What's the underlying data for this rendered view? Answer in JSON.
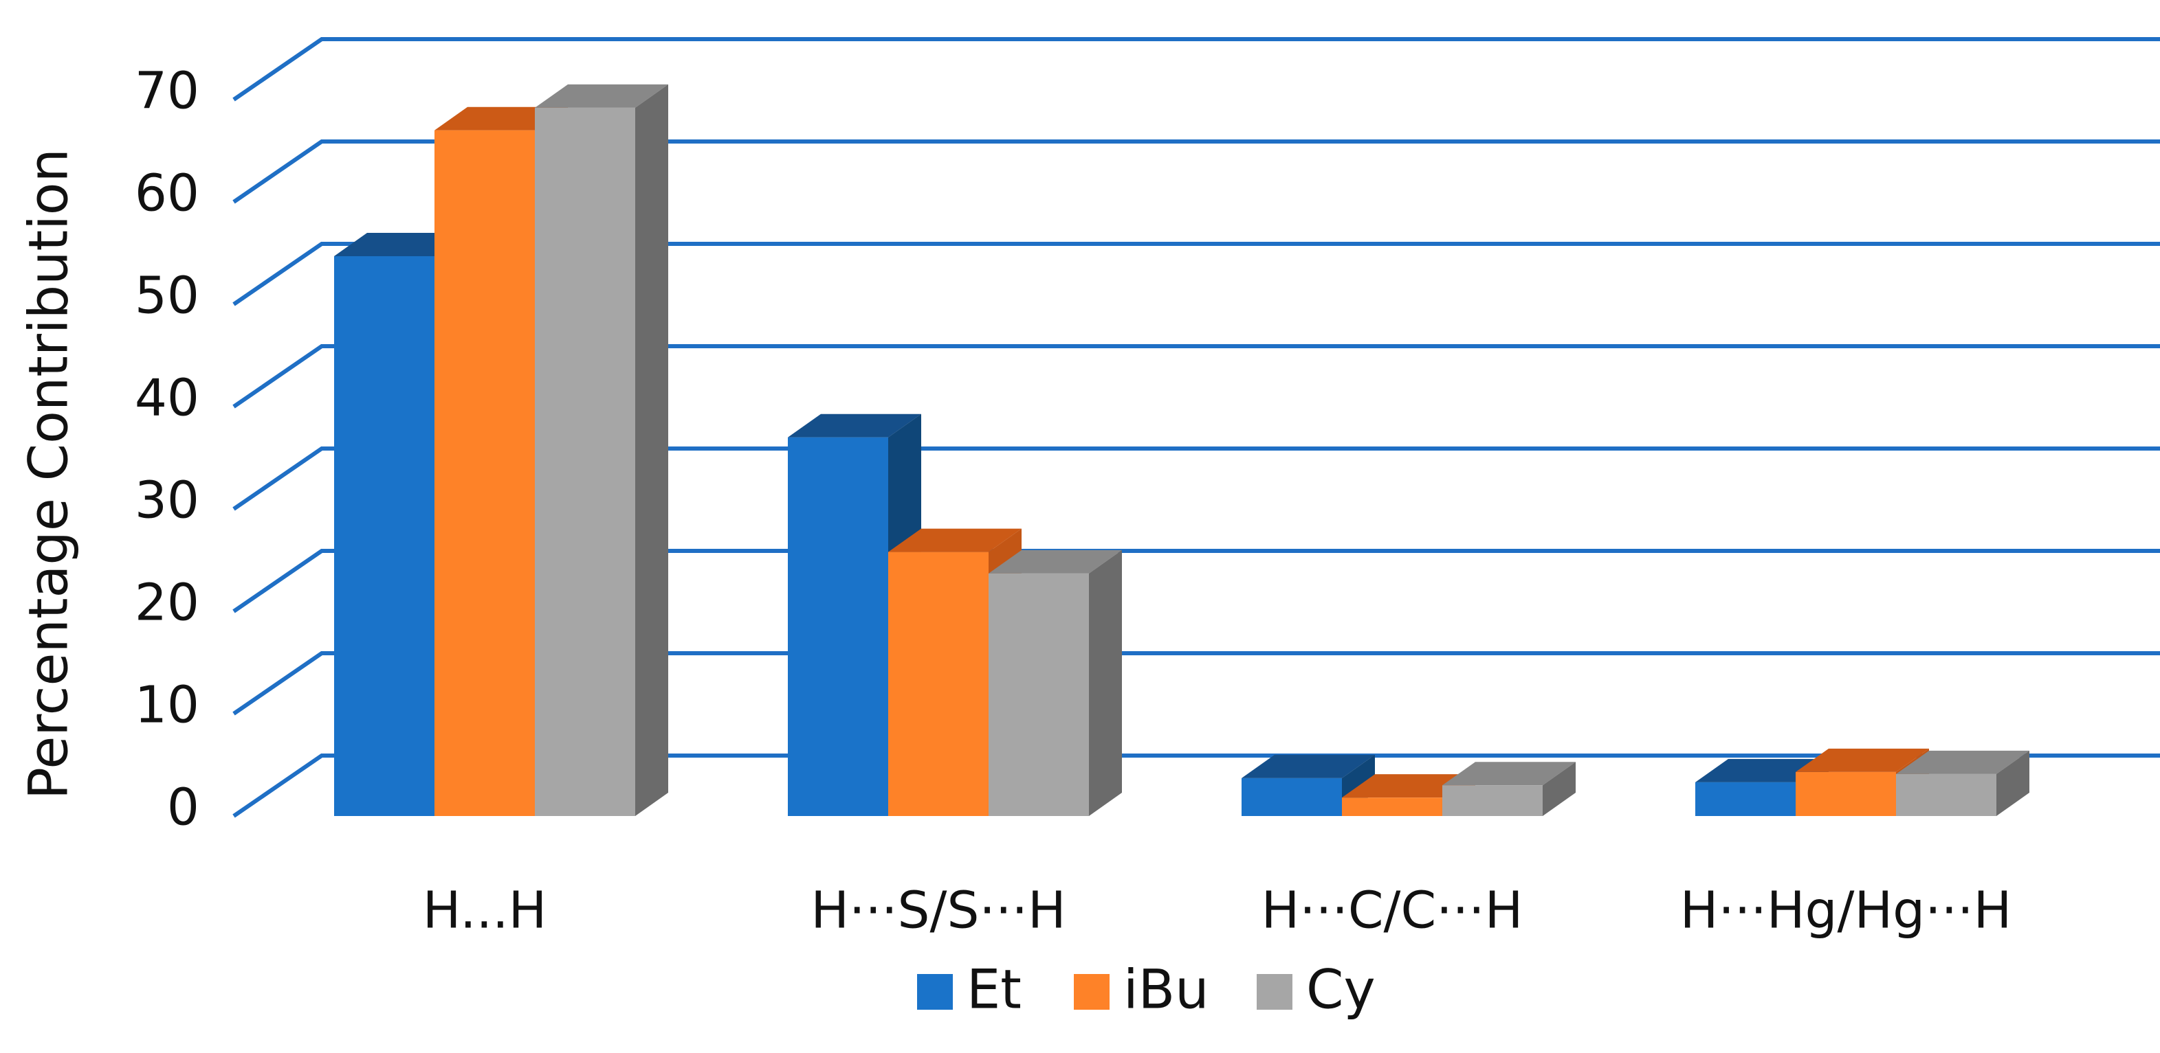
{
  "chart_data": {
    "type": "bar",
    "ylabel": "Percentage Contribution",
    "xlabel": "",
    "ylim": [
      0,
      70
    ],
    "yticks": [
      0,
      10,
      20,
      30,
      40,
      50,
      60,
      70
    ],
    "grid": true,
    "three_d": true,
    "legend_position": "bottom",
    "categories": [
      "H...H",
      "H···S/S···H",
      "H···C/C···H",
      "H···Hg/Hg···H"
    ],
    "series": [
      {
        "name": "Et",
        "values": [
          54.7,
          37.0,
          3.7,
          3.3
        ]
      },
      {
        "name": "iBu",
        "values": [
          67.0,
          25.8,
          1.8,
          4.3
        ]
      },
      {
        "name": "Cy",
        "values": [
          69.2,
          23.7,
          3.0,
          4.1
        ]
      }
    ]
  },
  "colors": {
    "grid": "#1f6fc5",
    "series": [
      {
        "front": "#1a73c9",
        "top": "#154f8a",
        "side": "#0f4678"
      },
      {
        "front": "#fe8228",
        "top": "#cc5a16",
        "side": "#c35615"
      },
      {
        "front": "#a6a6a6",
        "top": "#888888",
        "side": "#6b6b6b"
      }
    ]
  }
}
